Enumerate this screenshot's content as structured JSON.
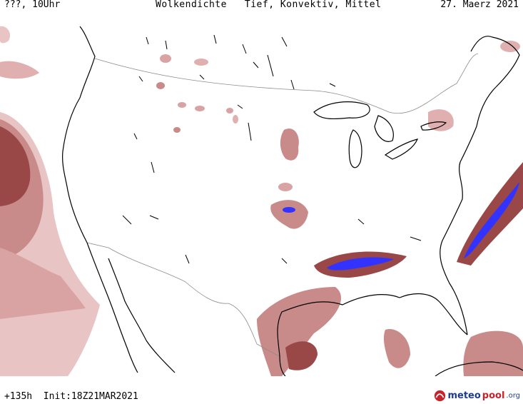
{
  "header": {
    "left": "???, 10Uhr",
    "title": "Wolkendichte   Tief, Konvektiv, Mittel",
    "date": "27. Maerz 2021"
  },
  "footer": {
    "run_info": "+135h  Init:18Z21MAR2021"
  },
  "logo": {
    "part1": "meteo",
    "part2": "pool",
    "part3": ".org",
    "icon": "meteopool-logo-icon"
  },
  "colors": {
    "cloud_light": "#e9c4c4",
    "cloud_medium": "#c98a8a",
    "cloud_dense": "#9a4747",
    "cloud_max": "#3333ff",
    "coastline": "#000000",
    "border": "#8c8c8c"
  }
}
